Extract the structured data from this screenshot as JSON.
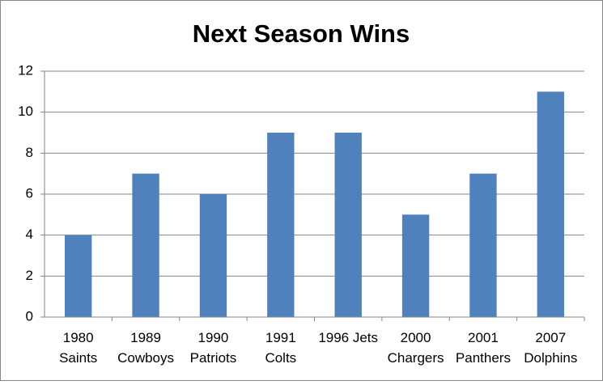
{
  "chart_data": {
    "type": "bar",
    "title": "Next Season Wins",
    "categories": [
      "1980\nSaints",
      "1989\nCowboys",
      "1990\nPatriots",
      "1991\nColts",
      "1996 Jets",
      "2000\nChargers",
      "2001\nPanthers",
      "2007\nDolphins"
    ],
    "values": [
      4,
      7,
      6,
      9,
      9,
      5,
      7,
      11
    ],
    "color": "#4f81bd",
    "ylim": [
      0,
      12
    ],
    "yticks": [
      0,
      2,
      4,
      6,
      8,
      10,
      12
    ],
    "grid": true
  }
}
